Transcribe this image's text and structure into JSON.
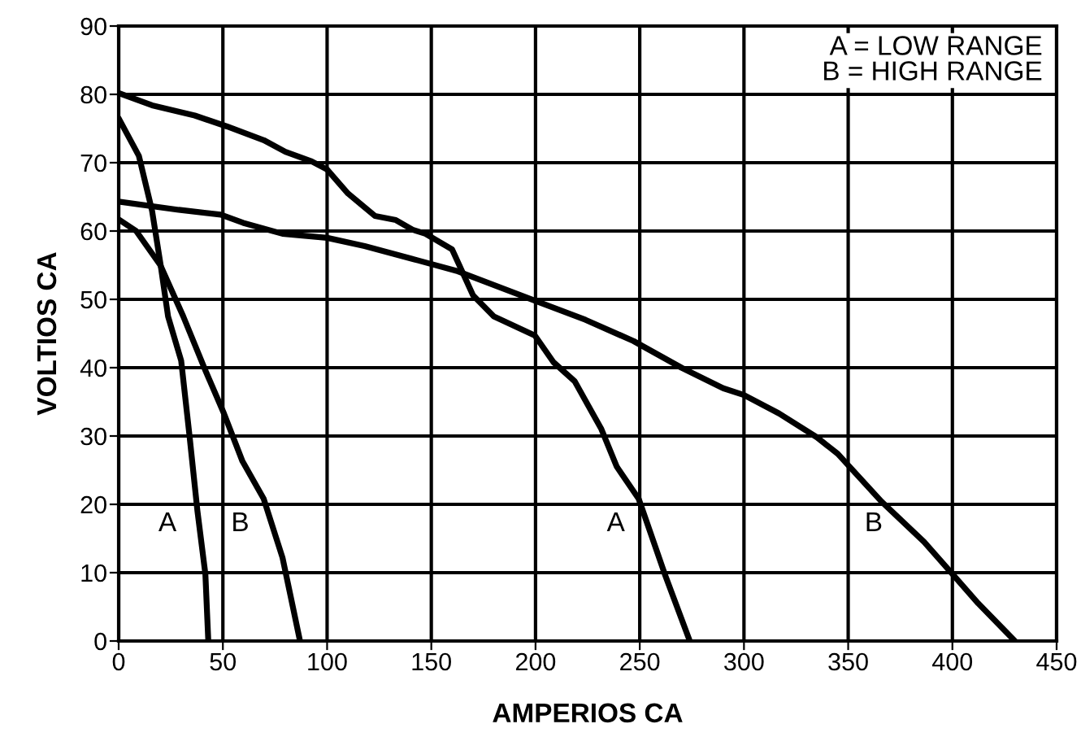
{
  "chart_data": {
    "type": "line",
    "xlabel": "AMPERIOS CA",
    "ylabel": "VOLTIOS CA",
    "xlim": [
      0,
      450
    ],
    "xticks": [
      0,
      50,
      100,
      150,
      200,
      250,
      300,
      350,
      400,
      450
    ],
    "ylim": [
      0,
      90
    ],
    "yticks": [
      0,
      10,
      20,
      30,
      40,
      50,
      60,
      70,
      80,
      90
    ],
    "grid": true,
    "legend": false,
    "marker": "none",
    "line_style": "solid",
    "series": [
      {
        "name": "A",
        "color": "#000000",
        "x": [
          0,
          9.7,
          16,
          20,
          23.7,
          30,
          34,
          37.8,
          41.6,
          43
        ],
        "values": [
          76.5,
          71,
          63,
          55.3,
          47.5,
          41,
          30,
          19,
          9.8,
          0
        ]
      },
      {
        "name": "B",
        "color": "#000000",
        "x": [
          0,
          8.4,
          20,
          31,
          41.6,
          50.5,
          59.4,
          69.6,
          78.6,
          82.4,
          87
        ],
        "values": [
          61.7,
          60,
          55,
          47.5,
          39.6,
          33.3,
          26.3,
          20.8,
          12.2,
          6.7,
          0
        ]
      },
      {
        "name": "A",
        "color": "#000000",
        "x": [
          0,
          16,
          36.5,
          52,
          69.6,
          80,
          92.6,
          100,
          110,
          123,
          133,
          141,
          147.2,
          160,
          170,
          180,
          199.7,
          208.6,
          218.8,
          231.6,
          239,
          249.5,
          262,
          274
        ],
        "values": [
          80.2,
          78.4,
          76.9,
          75.3,
          73.3,
          71.6,
          70.2,
          69,
          65.5,
          62.2,
          61.6,
          60.2,
          59.6,
          57.3,
          50.6,
          47.5,
          44.7,
          40.8,
          38,
          31,
          25.5,
          20.8,
          9.8,
          0
        ]
      },
      {
        "name": "B",
        "color": "#000000",
        "x": [
          0,
          28.8,
          49,
          59.7,
          78.6,
          100,
          118,
          143.6,
          162.8,
          199.7,
          224,
          247,
          270,
          290,
          300,
          316.8,
          335,
          345,
          366,
          386.4,
          400,
          412.4,
          430
        ],
        "values": [
          64.3,
          63.1,
          62.4,
          61.2,
          59.6,
          59,
          57.8,
          55.7,
          54.1,
          49.8,
          47,
          43.9,
          40,
          37,
          36,
          33.3,
          29.8,
          27.4,
          20.4,
          14.5,
          9.8,
          5.5,
          0
        ]
      }
    ],
    "annotations": [
      "A = LOW RANGE\nB = HIGH RANGE"
    ]
  }
}
